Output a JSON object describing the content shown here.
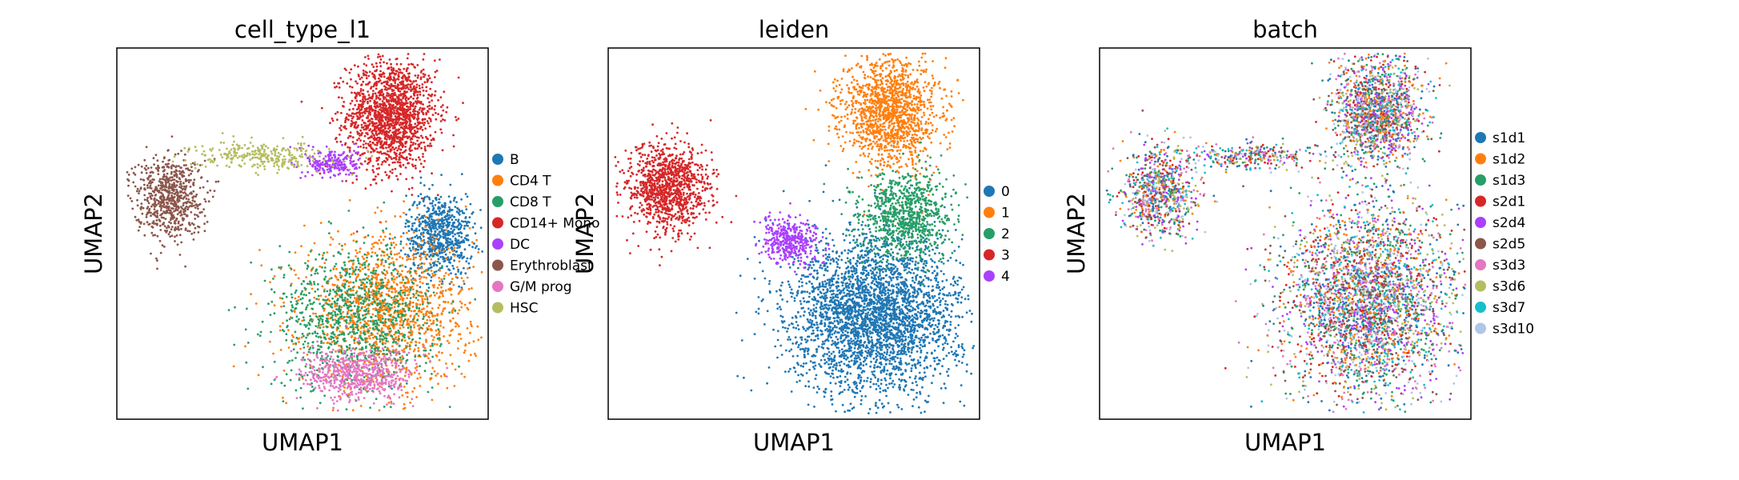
{
  "chart_data": [
    {
      "type": "scatter",
      "title": "cell_type_l1",
      "xlabel": "UMAP1",
      "ylabel": "UMAP2",
      "xticks": "none",
      "yticks": "none",
      "legend": "right",
      "xlim": [
        0,
        10
      ],
      "ylim": [
        0,
        10
      ],
      "categories": [
        "B",
        "CD4 T",
        "CD8 T",
        "CD14+ Mono",
        "DC",
        "Erythroblast",
        "G/M prog",
        "HSC"
      ],
      "colors": [
        "#1f77b4",
        "#ff7f0e",
        "#279e68",
        "#d62728",
        "#aa40fc",
        "#8c564b",
        "#e377c2",
        "#b5bd61"
      ],
      "regions": [
        {
          "category": "CD14+ Mono",
          "x": 7.4,
          "y": 8.2,
          "sx": 0.6,
          "sy": 0.75,
          "n": 1600
        },
        {
          "category": "B",
          "x": 8.7,
          "y": 5.0,
          "sx": 0.45,
          "sy": 0.55,
          "n": 700
        },
        {
          "category": "CD4 T",
          "x": 7.3,
          "y": 2.9,
          "sx": 1.15,
          "sy": 1.0,
          "n": 1400
        },
        {
          "category": "CD8 T",
          "x": 6.4,
          "y": 2.7,
          "sx": 1.1,
          "sy": 0.95,
          "n": 1000
        },
        {
          "category": "DC",
          "x": 5.8,
          "y": 6.9,
          "sx": 0.35,
          "sy": 0.2,
          "n": 220
        },
        {
          "category": "Erythroblast",
          "x": 1.4,
          "y": 6.0,
          "sx": 0.45,
          "sy": 0.55,
          "n": 700
        },
        {
          "category": "G/M prog",
          "x": 6.5,
          "y": 1.2,
          "sx": 0.75,
          "sy": 0.35,
          "n": 600
        },
        {
          "category": "HSC",
          "x": 3.9,
          "y": 7.1,
          "sx": 0.9,
          "sy": 0.18,
          "n": 300
        }
      ]
    },
    {
      "type": "scatter",
      "title": "leiden",
      "xlabel": "UMAP1",
      "ylabel": "UMAP2",
      "xticks": "none",
      "yticks": "none",
      "legend": "right",
      "xlim": [
        0,
        10
      ],
      "ylim": [
        0,
        10
      ],
      "categories": [
        "0",
        "1",
        "2",
        "3",
        "4"
      ],
      "colors": [
        "#1f77b4",
        "#ff7f0e",
        "#279e68",
        "#d62728",
        "#aa40fc"
      ],
      "regions": [
        {
          "category": "0",
          "x": 7.2,
          "y": 2.8,
          "sx": 1.15,
          "sy": 1.05,
          "n": 3200
        },
        {
          "category": "1",
          "x": 7.6,
          "y": 8.3,
          "sx": 0.65,
          "sy": 0.75,
          "n": 1400
        },
        {
          "category": "2",
          "x": 8.0,
          "y": 5.5,
          "sx": 0.6,
          "sy": 0.6,
          "n": 900
        },
        {
          "category": "3",
          "x": 1.6,
          "y": 6.2,
          "sx": 0.55,
          "sy": 0.6,
          "n": 1100
        },
        {
          "category": "4",
          "x": 4.9,
          "y": 4.8,
          "sx": 0.4,
          "sy": 0.3,
          "n": 400
        }
      ]
    },
    {
      "type": "scatter",
      "title": "batch",
      "xlabel": "UMAP1",
      "ylabel": "UMAP2",
      "xticks": "none",
      "yticks": "none",
      "legend": "right",
      "xlim": [
        0,
        10
      ],
      "ylim": [
        0,
        10
      ],
      "categories": [
        "s1d1",
        "s1d2",
        "s1d3",
        "s2d1",
        "s2d4",
        "s2d5",
        "s3d3",
        "s3d6",
        "s3d7",
        "s3d10"
      ],
      "colors": [
        "#1f77b4",
        "#ff7f0e",
        "#279e68",
        "#d62728",
        "#aa40fc",
        "#8c564b",
        "#e377c2",
        "#b5bd61",
        "#17becf",
        "#aec7e8"
      ],
      "regions": [
        {
          "category": "mixed",
          "x": 7.5,
          "y": 8.3,
          "sx": 0.6,
          "sy": 0.75,
          "n": 1500
        },
        {
          "category": "mixed",
          "x": 7.2,
          "y": 3.2,
          "sx": 1.15,
          "sy": 1.3,
          "n": 3200
        },
        {
          "category": "mixed",
          "x": 1.6,
          "y": 6.1,
          "sx": 0.5,
          "sy": 0.6,
          "n": 800
        },
        {
          "category": "mixed",
          "x": 4.0,
          "y": 7.1,
          "sx": 0.9,
          "sy": 0.18,
          "n": 300
        }
      ]
    }
  ]
}
